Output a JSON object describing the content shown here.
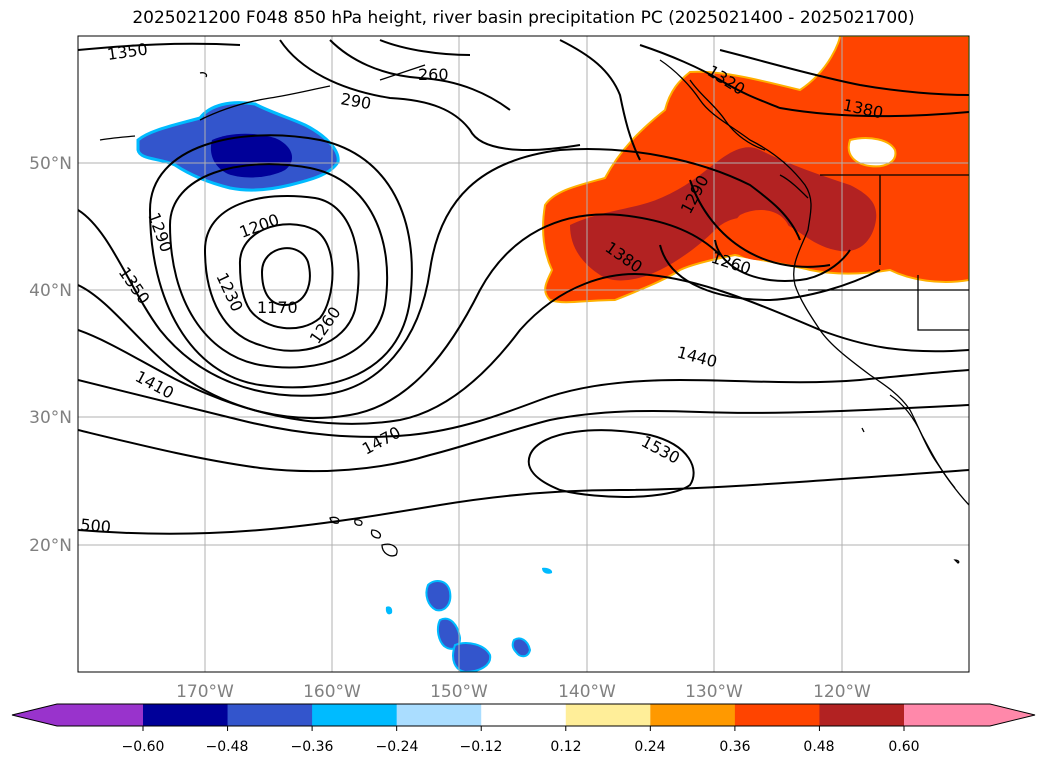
{
  "title": "2025021200 F048 850 hPa height, river basin precipitation PC (2025021400 - 2025021700)",
  "map": {
    "lat_ticks": [
      "50°N",
      "40°N",
      "30°N",
      "20°N"
    ],
    "lon_ticks": [
      "170°W",
      "160°W",
      "150°W",
      "140°W",
      "130°W",
      "120°W"
    ],
    "contour_labels": [
      "1350",
      "260",
      "290",
      "1320",
      "1380",
      "1290",
      "1200",
      "1350",
      "1230",
      "1170",
      "1260",
      "1380",
      "1290",
      "1260",
      "1440",
      "1410",
      "1470",
      "1530",
      "500"
    ]
  },
  "colorbar": {
    "ticks": [
      "−0.60",
      "−0.48",
      "−0.36",
      "−0.24",
      "−0.12",
      "0.12",
      "0.24",
      "0.36",
      "0.48",
      "0.60"
    ],
    "colors": [
      "#9933cc",
      "#000099",
      "#3355cc",
      "#00bbff",
      "#aaddff",
      "#ffffff",
      "#ffee99",
      "#ff9900",
      "#ff4400",
      "#b22222",
      "#ff88aa"
    ]
  }
}
